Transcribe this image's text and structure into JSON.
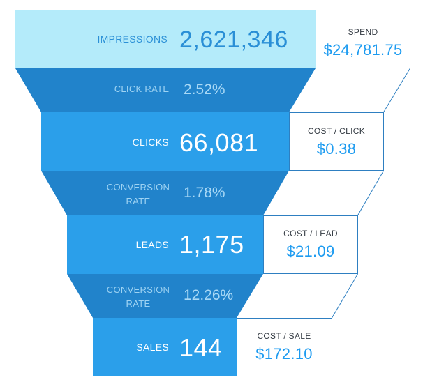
{
  "stages": [
    {
      "label": "IMPRESSIONS",
      "value": "2,621,346",
      "cost_label": "SPEND",
      "cost_value": "$24,781.75"
    },
    {
      "label": "CLICKS",
      "value": "66,081",
      "cost_label": "COST / CLICK",
      "cost_value": "$0.38"
    },
    {
      "label": "LEADS",
      "value": "1,175",
      "cost_label": "COST / LEAD",
      "cost_value": "$21.09"
    },
    {
      "label": "SALES",
      "value": "144",
      "cost_label": "COST / SALE",
      "cost_value": "$172.10"
    }
  ],
  "rates": [
    {
      "label_line1": "CLICK RATE",
      "label_line2": "",
      "value": "2.52%"
    },
    {
      "label_line1": "CONVERSION",
      "label_line2": "RATE",
      "value": "1.78%"
    },
    {
      "label_line1": "CONVERSION",
      "label_line2": "RATE",
      "value": "12.26%"
    }
  ],
  "colors": {
    "impressions_band": "#b4ebfa",
    "stage_band": "#2b9fea",
    "rate_band": "#2183cb",
    "connector_line": "#2e7fc1",
    "cost_value_text": "#1d9bf0",
    "impressions_text": "#2a8fd6"
  }
}
